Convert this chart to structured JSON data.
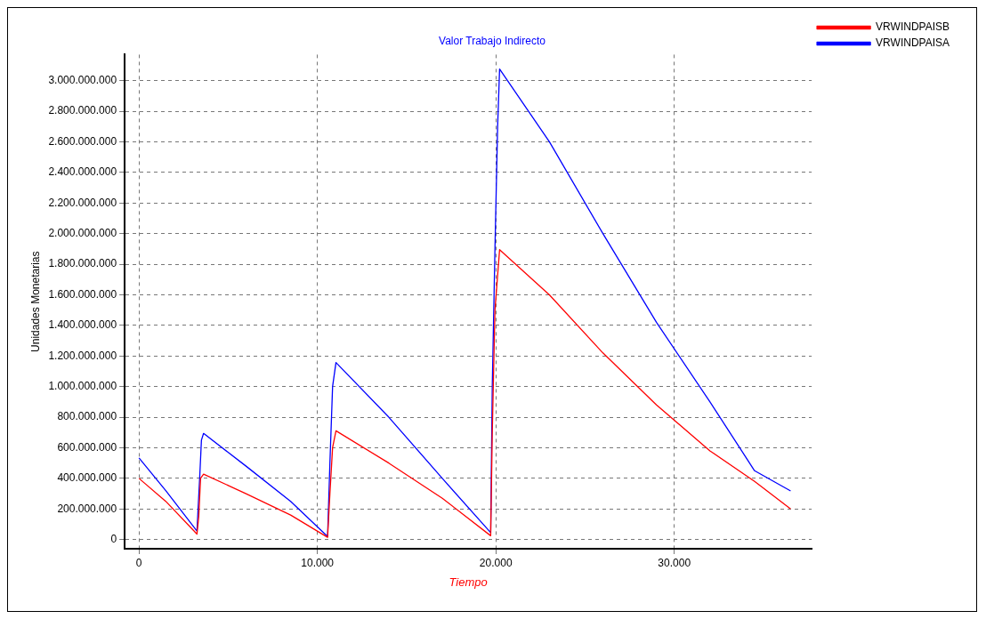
{
  "chart_data": {
    "type": "line",
    "title": "Valor Trabajo Indirecto",
    "xlabel": "Tiempo",
    "ylabel": "Unidades Monetarias",
    "series": [
      {
        "name": "VRWINDPAISB",
        "color": "#ff0000",
        "x": [
          0,
          1500,
          3250,
          3350,
          3450,
          3620,
          6000,
          8500,
          10570,
          10700,
          10850,
          11040,
          14000,
          17000,
          19710,
          19800,
          19950,
          20210,
          23000,
          26000,
          29000,
          32000,
          34500,
          36520
        ],
        "values": [
          400000000,
          250000000,
          36000000,
          150000000,
          400000000,
          428000000,
          300000000,
          160000000,
          15000000,
          300000000,
          600000000,
          711000000,
          500000000,
          270000000,
          25000000,
          700000000,
          1500000000,
          1895000000,
          1600000000,
          1220000000,
          880000000,
          580000000,
          380000000,
          200000000
        ]
      },
      {
        "name": "VRWINDPAISA",
        "color": "#0000ff",
        "x": [
          0,
          1500,
          3250,
          3400,
          3500,
          3620,
          6000,
          8500,
          10570,
          10700,
          10850,
          11040,
          14000,
          17000,
          19710,
          19800,
          19950,
          20100,
          20210,
          23000,
          26000,
          29000,
          32000,
          34500,
          36520
        ],
        "values": [
          534000000,
          320000000,
          56000000,
          400000000,
          650000000,
          694000000,
          480000000,
          250000000,
          20000000,
          500000000,
          1000000000,
          1157000000,
          800000000,
          400000000,
          45000000,
          1000000000,
          1900000000,
          2700000000,
          3075000000,
          2600000000,
          2000000000,
          1420000000,
          900000000,
          450000000,
          318000000
        ]
      }
    ],
    "xlim": [
      -800,
      37700
    ],
    "ylim": [
      -60000000,
      3170000000
    ],
    "xticks": [
      0,
      {
        "value": 10000,
        "label": "10.000"
      },
      {
        "value": 20000,
        "label": "20.000"
      },
      {
        "value": 30000,
        "label": "30.000"
      }
    ],
    "yticks": [
      0,
      {
        "value": 200000000,
        "label": "200.000.000"
      },
      {
        "value": 400000000,
        "label": "400.000.000"
      },
      {
        "value": 600000000,
        "label": "600.000.000"
      },
      {
        "value": 800000000,
        "label": "800.000.000"
      },
      {
        "value": 1000000000,
        "label": "1.000.000.000"
      },
      {
        "value": 1200000000,
        "label": "1.200.000.000"
      },
      {
        "value": 1400000000,
        "label": "1.400.000.000"
      },
      {
        "value": 1600000000,
        "label": "1.600.000.000"
      },
      {
        "value": 1800000000,
        "label": "1.800.000.000"
      },
      {
        "value": 2000000000,
        "label": "2.000.000.000"
      },
      {
        "value": 2200000000,
        "label": "2.200.000.000"
      },
      {
        "value": 2400000000,
        "label": "2.400.000.000"
      },
      {
        "value": 2600000000,
        "label": "2.600.000.000"
      },
      {
        "value": 2800000000,
        "label": "2.800.000.000"
      },
      {
        "value": 3000000000,
        "label": "3.000.000.000"
      }
    ],
    "grid": true,
    "legend": "top right",
    "marker": "none",
    "line_style": "solid"
  }
}
